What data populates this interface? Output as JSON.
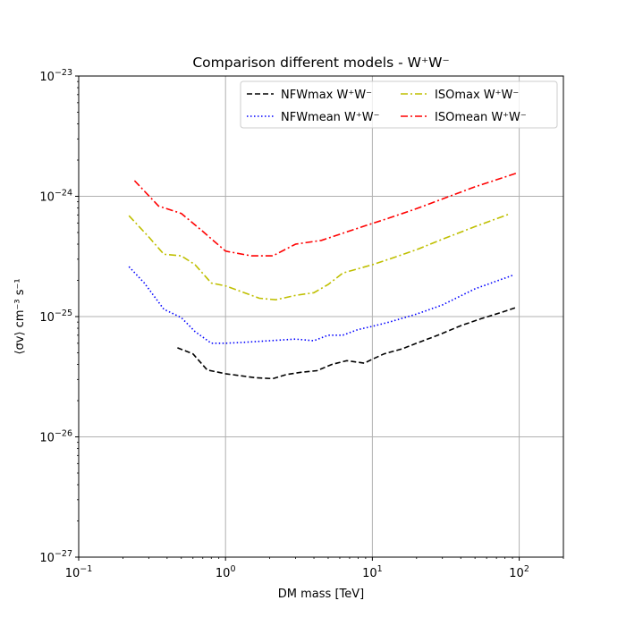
{
  "chart_data": {
    "type": "line",
    "title": "Comparison different models - W⁺W⁻",
    "xlabel": "DM mass [TeV]",
    "ylabel": "⟨σv⟩ cm⁻³ s⁻¹",
    "xscale": "log",
    "yscale": "log",
    "xlim": [
      0.1,
      200
    ],
    "ylim": [
      1e-27,
      1e-23
    ],
    "grid": true,
    "legend_position": "top-right",
    "x_ticks": [
      {
        "value": 0.1,
        "base": "10",
        "exp": "−1"
      },
      {
        "value": 1,
        "base": "10",
        "exp": "0"
      },
      {
        "value": 10,
        "base": "10",
        "exp": "1"
      },
      {
        "value": 100,
        "base": "10",
        "exp": "2"
      }
    ],
    "y_ticks": [
      {
        "value": 1e-27,
        "base": "10",
        "exp": "−27"
      },
      {
        "value": 1e-26,
        "base": "10",
        "exp": "−26"
      },
      {
        "value": 1e-25,
        "base": "10",
        "exp": "−25"
      },
      {
        "value": 1e-24,
        "base": "10",
        "exp": "−24"
      },
      {
        "value": 1e-23,
        "base": "10",
        "exp": "−23"
      }
    ],
    "series": [
      {
        "name": "NFWmax W⁺W⁻",
        "color": "#000000",
        "linestyle": "dashed",
        "x": [
          0.47,
          0.6,
          0.75,
          1.0,
          1.6,
          2.1,
          2.6,
          3.3,
          4.2,
          5.3,
          6.7,
          8.8,
          9.9,
          12,
          16,
          20,
          28,
          40,
          55,
          75,
          97
        ],
        "y": [
          5.5e-26,
          4.9e-26,
          3.6e-26,
          3.35e-26,
          3.1e-26,
          3.05e-26,
          3.3e-26,
          3.45e-26,
          3.55e-26,
          4e-26,
          4.3e-26,
          4.1e-26,
          4.4e-26,
          4.9e-26,
          5.4e-26,
          6e-26,
          7e-26,
          8.4e-26,
          9.6e-26,
          1.08e-25,
          1.2e-25
        ]
      },
      {
        "name": "NFWmean W⁺W⁻",
        "color": "#0000ff",
        "linestyle": "dotted",
        "x": [
          0.22,
          0.28,
          0.38,
          0.5,
          0.62,
          0.8,
          1.0,
          1.3,
          2.0,
          3.0,
          4.0,
          5.0,
          6.3,
          8.0,
          10,
          13,
          20,
          30,
          50,
          90
        ],
        "y": [
          2.6e-25,
          1.9e-25,
          1.15e-25,
          9.8e-26,
          7.5e-26,
          6e-26,
          6e-26,
          6.1e-26,
          6.3e-26,
          6.5e-26,
          6.3e-26,
          7e-26,
          7e-26,
          7.8e-26,
          8.3e-26,
          9e-26,
          1.05e-25,
          1.25e-25,
          1.7e-25,
          2.2e-25
        ]
      },
      {
        "name": "ISOmax W⁺W⁻",
        "color": "#bfbf00",
        "linestyle": "dashdot",
        "x": [
          0.22,
          0.3,
          0.38,
          0.5,
          0.62,
          0.8,
          1.0,
          1.3,
          1.7,
          2.2,
          3.0,
          4.0,
          5.0,
          6.3,
          8.0,
          10,
          13,
          20,
          30,
          50,
          85
        ],
        "y": [
          6.9e-25,
          4.6e-25,
          3.3e-25,
          3.2e-25,
          2.7e-25,
          1.9e-25,
          1.8e-25,
          1.6e-25,
          1.42e-25,
          1.38e-25,
          1.5e-25,
          1.58e-25,
          1.85e-25,
          2.3e-25,
          2.5e-25,
          2.7e-25,
          3e-25,
          3.6e-25,
          4.4e-25,
          5.6e-25,
          7.1e-25
        ]
      },
      {
        "name": "ISOmean W⁺W⁻",
        "color": "#ff0000",
        "linestyle": "dashdot",
        "x": [
          0.24,
          0.35,
          0.5,
          0.7,
          1.0,
          1.5,
          2.1,
          3.0,
          4.5,
          6.5,
          9.0,
          13,
          20,
          30,
          50,
          95
        ],
        "y": [
          1.35e-24,
          8.3e-25,
          7.2e-25,
          5.1e-25,
          3.5e-25,
          3.2e-25,
          3.2e-25,
          4e-25,
          4.3e-25,
          5e-25,
          5.7e-25,
          6.6e-25,
          7.9e-25,
          9.5e-25,
          1.2e-24,
          1.55e-24
        ]
      }
    ]
  }
}
